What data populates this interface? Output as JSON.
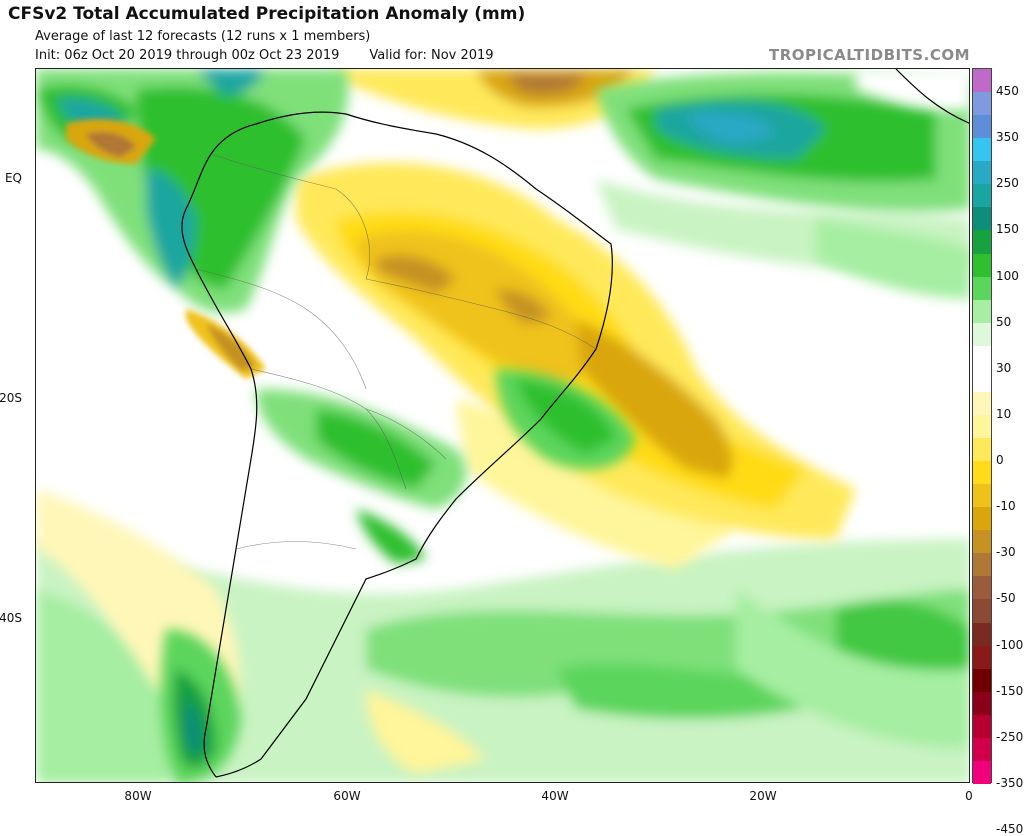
{
  "header": {
    "title": "CFSv2 Total Accumulated Precipitation Anomaly (mm)",
    "subtitle": "Average of last 12 forecasts (12 runs x 1 members)",
    "init": "Init: 06z Oct 20 2019 through 00z Oct 23 2019",
    "valid": "Valid for: Nov 2019",
    "brand": "TROPICALTIDBITS.COM"
  },
  "map": {
    "region": "South America and adjacent Atlantic/Pacific",
    "lat_labels": [
      "EQ",
      "20S",
      "40S"
    ],
    "lon_labels": [
      "80W",
      "60W",
      "40W",
      "20W",
      "0"
    ]
  },
  "colorbar": {
    "labels": [
      "450",
      "350",
      "250",
      "150",
      "100",
      "50",
      "30",
      "10",
      "0",
      "-10",
      "-30",
      "-50",
      "-100",
      "-150",
      "-250",
      "-350",
      "-450"
    ],
    "colors": [
      "#c06ac8",
      "#7f9be0",
      "#5d8ed8",
      "#35c5f0",
      "#29a9c6",
      "#1aa6a0",
      "#0e8d7a",
      "#17a13f",
      "#2fbf2f",
      "#5bd55b",
      "#a6eea2",
      "#dff7db",
      "#ffffff",
      "#ffffff",
      "#fff7b8",
      "#fff59a",
      "#ffe95a",
      "#ffdb18",
      "#efc21a",
      "#d9a60e",
      "#c59223",
      "#b07736",
      "#9a5c3a",
      "#8a4a33",
      "#7a2a20",
      "#8a1a18",
      "#700000",
      "#8a0018",
      "#b80030",
      "#d0004a",
      "#f0007a"
    ],
    "colors_note": "top to bottom"
  }
}
